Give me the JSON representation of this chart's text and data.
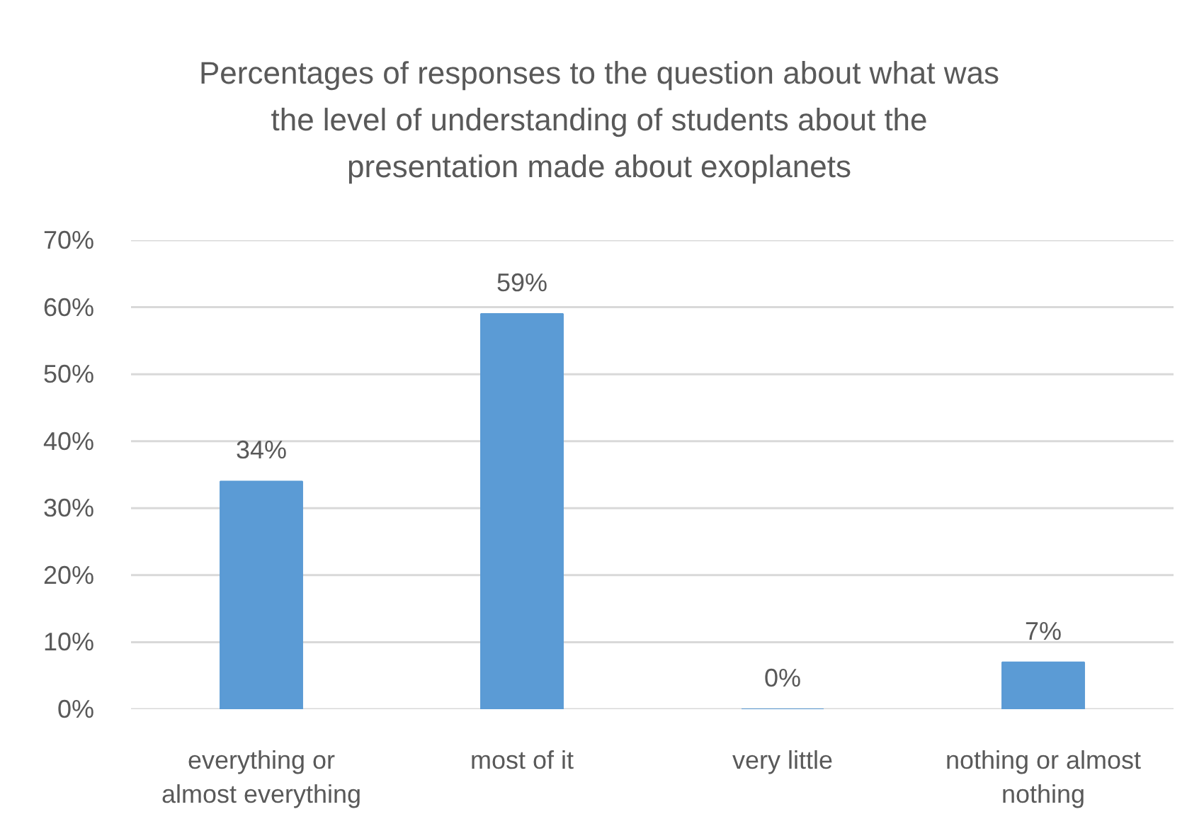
{
  "chart_data": {
    "type": "bar",
    "title": "Percentages of responses to the question about what was the level of understanding of students about the presentation made about exoplanets",
    "categories": [
      "everything or almost everything",
      "most of it",
      "very little",
      "nothing or almost nothing"
    ],
    "values": [
      34,
      59,
      0,
      7
    ],
    "value_labels": [
      "34%",
      "59%",
      "0%",
      "7%"
    ],
    "color": "#5b9bd5",
    "ylim": [
      0,
      70
    ],
    "yticks": [
      {
        "value": 0,
        "label": "0%"
      },
      {
        "value": 10,
        "label": "10%"
      },
      {
        "value": 20,
        "label": "20%"
      },
      {
        "value": 30,
        "label": "30%"
      },
      {
        "value": 40,
        "label": "40%"
      },
      {
        "value": 50,
        "label": "50%"
      },
      {
        "value": 60,
        "label": "60%"
      },
      {
        "value": 70,
        "label": "70%"
      }
    ],
    "grid": "y"
  }
}
